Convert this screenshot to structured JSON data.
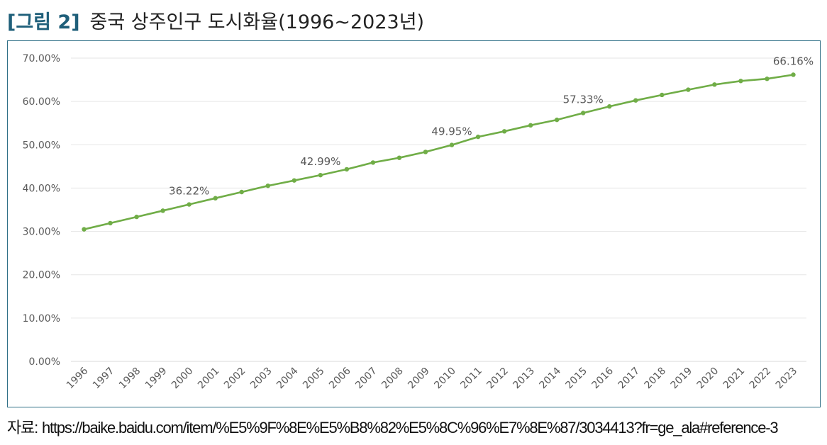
{
  "header": {
    "figure_no": "[그림 2]",
    "title": "중국 상주인구 도시화율(1996~2023년)"
  },
  "source": {
    "label": "자료:",
    "url": "https://baike.baidu.com/item/%E5%9F%8E%E5%B8%82%E5%8C%96%E7%8E%87/3034413?fr=ge_ala#reference-3"
  },
  "chart_data": {
    "type": "line",
    "title": "",
    "xlabel": "",
    "ylabel": "",
    "ylim": [
      0,
      70
    ],
    "yticks": [
      "0.00%",
      "10.00%",
      "20.00%",
      "30.00%",
      "40.00%",
      "50.00%",
      "60.00%",
      "70.00%"
    ],
    "grid": true,
    "legend": "none",
    "line_color": "#70ad47",
    "categories": [
      "1996",
      "1997",
      "1998",
      "1999",
      "2000",
      "2001",
      "2002",
      "2003",
      "2004",
      "2005",
      "2006",
      "2007",
      "2008",
      "2009",
      "2010",
      "2011",
      "2012",
      "2013",
      "2014",
      "2015",
      "2016",
      "2017",
      "2018",
      "2019",
      "2020",
      "2021",
      "2022",
      "2023"
    ],
    "values": [
      30.48,
      31.91,
      33.35,
      34.78,
      36.22,
      37.66,
      39.09,
      40.53,
      41.76,
      42.99,
      44.34,
      45.89,
      46.99,
      48.34,
      49.95,
      51.83,
      53.1,
      54.49,
      55.75,
      57.33,
      58.84,
      60.24,
      61.5,
      62.71,
      63.89,
      64.72,
      65.22,
      66.16
    ],
    "data_labels": [
      {
        "index": 4,
        "text": "36.22%"
      },
      {
        "index": 9,
        "text": "42.99%"
      },
      {
        "index": 14,
        "text": "49.95%"
      },
      {
        "index": 19,
        "text": "57.33%"
      },
      {
        "index": 27,
        "text": "66.16%"
      }
    ]
  }
}
